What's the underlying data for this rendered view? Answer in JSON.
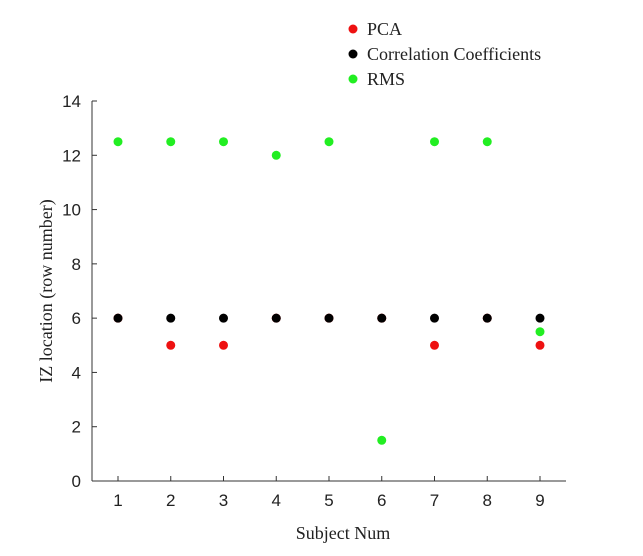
{
  "chart_data": {
    "type": "scatter",
    "title": "",
    "xlabel": "Subject Num",
    "ylabel": "IZ location (row number)",
    "xlim": [
      0.5,
      9.5
    ],
    "ylim": [
      0,
      14
    ],
    "x_ticks": [
      1,
      2,
      3,
      4,
      5,
      6,
      7,
      8,
      9
    ],
    "y_ticks": [
      0,
      2,
      4,
      6,
      8,
      10,
      12,
      14
    ],
    "grid": false,
    "legend_position": "top-right",
    "series": [
      {
        "name": "PCA",
        "color": "#ee1111",
        "points": [
          {
            "x": 1,
            "y": 6
          },
          {
            "x": 2,
            "y": 5
          },
          {
            "x": 3,
            "y": 5
          },
          {
            "x": 4,
            "y": 6
          },
          {
            "x": 5,
            "y": 6
          },
          {
            "x": 6,
            "y": 6
          },
          {
            "x": 7,
            "y": 5
          },
          {
            "x": 8,
            "y": 6
          },
          {
            "x": 9,
            "y": 5
          }
        ]
      },
      {
        "name": "Correlation Coefficients",
        "color": "#000000",
        "points": [
          {
            "x": 1,
            "y": 6
          },
          {
            "x": 2,
            "y": 6
          },
          {
            "x": 3,
            "y": 6
          },
          {
            "x": 4,
            "y": 6
          },
          {
            "x": 5,
            "y": 6
          },
          {
            "x": 6,
            "y": 6
          },
          {
            "x": 7,
            "y": 6
          },
          {
            "x": 8,
            "y": 6
          },
          {
            "x": 9,
            "y": 6
          }
        ]
      },
      {
        "name": "RMS",
        "color": "#22ee22",
        "points": [
          {
            "x": 1,
            "y": 12.5
          },
          {
            "x": 2,
            "y": 12.5
          },
          {
            "x": 3,
            "y": 12.5
          },
          {
            "x": 4,
            "y": 12
          },
          {
            "x": 5,
            "y": 12.5
          },
          {
            "x": 6,
            "y": 1.5
          },
          {
            "x": 7,
            "y": 12.5
          },
          {
            "x": 8,
            "y": 12.5
          },
          {
            "x": 9,
            "y": 5.5
          }
        ]
      }
    ]
  }
}
